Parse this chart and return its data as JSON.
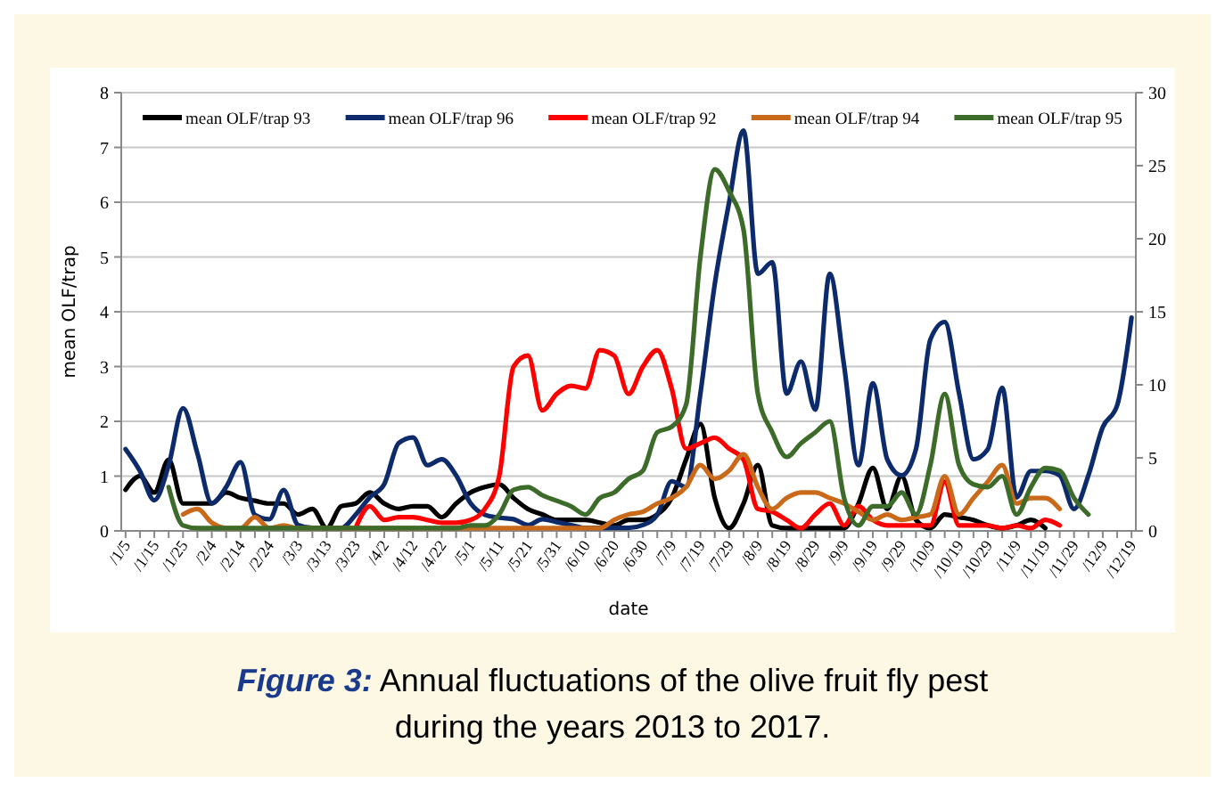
{
  "chart_data": {
    "type": "line",
    "title": "Figure 3: Annual fluctuations of the olive fruit fly pest during the years 2013 to 2017.",
    "xlabel": "date",
    "ylabel": "mean OLF/trap",
    "categories": [
      "/1/5",
      null,
      "/1/15",
      null,
      "/1/25",
      null,
      "/2/4",
      null,
      "/2/14",
      null,
      "/2/24",
      null,
      "/3/3",
      null,
      "/3/13",
      null,
      "/3/23",
      null,
      "/4/2",
      null,
      "/4/12",
      null,
      "/4/22",
      null,
      "/5/1",
      null,
      "/5/11",
      null,
      "/5/21",
      null,
      "/5/31",
      null,
      "/6/10",
      null,
      "/6/20",
      null,
      "/6/30",
      null,
      "/7/9",
      null,
      "/7/19",
      null,
      "/7/29",
      null,
      "/8/9",
      null,
      "/8/19",
      null,
      "/8/29",
      null,
      "/9/9",
      null,
      "/9/19",
      null,
      "/9/29",
      null,
      "/10/9",
      null,
      "/10/19",
      null,
      "/10/29",
      null,
      "/11/9",
      null,
      "/11/19",
      null,
      "/11/29",
      null,
      "/12/9",
      null,
      "/12/19"
    ],
    "series": [
      {
        "name": "mean OLF/trap 93",
        "color": "#000000",
        "values": [
          0.75,
          1.0,
          0.7,
          1.3,
          0.5,
          0.5,
          0.5,
          0.7,
          0.6,
          0.55,
          0.5,
          0.5,
          0.3,
          0.4,
          0.05,
          0.45,
          0.5,
          0.7,
          0.5,
          0.4,
          0.45,
          0.45,
          0.25,
          0.5,
          0.7,
          0.8,
          0.85,
          0.6,
          0.4,
          0.3,
          0.2,
          0.2,
          0.2,
          0.15,
          0.1,
          0.2,
          0.2,
          0.3,
          0.6,
          1.3,
          1.95,
          0.6,
          0.05,
          0.5,
          1.2,
          0.1,
          0.05,
          0.05,
          0.05,
          0.05,
          0.05,
          0.5,
          1.15,
          0.4,
          1.0,
          0.2,
          0.05,
          0.3,
          0.25,
          0.2,
          0.1,
          0.05,
          0.1,
          0.2,
          0.05,
          null,
          null,
          null,
          null,
          null,
          null
        ]
      },
      {
        "name": "mean OLF/trap 96",
        "color": "#0d2b6b",
        "axis": "y2",
        "values": [
          5.6,
          4.1,
          2.1,
          4.5,
          8.4,
          5.3,
          1.9,
          3,
          4.7,
          1.1,
          0.8,
          2.8,
          0.4,
          0.2,
          0.2,
          0.2,
          1.1,
          2.3,
          3.2,
          6,
          6.4,
          4.5,
          4.9,
          3.8,
          1.9,
          1.1,
          0.9,
          0.8,
          0.4,
          0.8,
          0.6,
          0.4,
          0.2,
          0.2,
          0.2,
          0.2,
          0.4,
          1.1,
          3.4,
          3,
          9.4,
          16.9,
          22.5,
          27.4,
          17.6,
          18.4,
          9.4,
          11.6,
          8.3,
          17.6,
          11.3,
          4.5,
          10.1,
          4.9,
          3.8,
          5.6,
          13.1,
          14.3,
          9.4,
          4.9,
          5.6,
          9.8,
          2.3,
          4.1,
          4.1,
          3.8,
          1.5,
          3.8,
          7.1,
          8.6,
          14.6
        ]
      },
      {
        "name": "mean OLF/trap 92",
        "color": "#ff0000",
        "values": [
          null,
          null,
          null,
          null,
          null,
          null,
          null,
          null,
          null,
          null,
          null,
          null,
          null,
          null,
          null,
          null,
          0.05,
          0.45,
          0.2,
          0.25,
          0.25,
          0.2,
          0.15,
          0.15,
          0.2,
          0.4,
          1.0,
          3.0,
          3.2,
          2.2,
          2.5,
          2.65,
          2.6,
          3.3,
          3.2,
          2.5,
          3.0,
          3.3,
          2.6,
          1.5,
          1.6,
          1.7,
          1.5,
          1.3,
          0.4,
          0.35,
          0.2,
          0.05,
          0.3,
          0.5,
          0.1,
          0.45,
          0.2,
          0.1,
          0.1,
          0.1,
          0.1,
          0.9,
          0.1,
          0.1,
          0.1,
          0.05,
          0.1,
          0.05,
          0.2,
          0.1,
          null,
          null,
          null,
          null,
          null
        ]
      },
      {
        "name": "mean OLF/trap 94",
        "color": "#c96a1b",
        "values": [
          null,
          null,
          null,
          null,
          0.3,
          0.4,
          0.15,
          0.05,
          0.05,
          0.25,
          0.05,
          0.1,
          0.05,
          0.05,
          0.05,
          0.05,
          0.05,
          0.05,
          0.05,
          0.05,
          0.05,
          0.05,
          0.05,
          0.05,
          0.05,
          0.05,
          0.05,
          0.05,
          0.05,
          0.05,
          0.05,
          0.05,
          0.05,
          0.05,
          0.2,
          0.3,
          0.35,
          0.5,
          0.6,
          0.8,
          1.2,
          0.95,
          1.1,
          1.4,
          0.8,
          0.4,
          0.6,
          0.7,
          0.7,
          0.6,
          0.5,
          0.35,
          0.2,
          0.3,
          0.2,
          0.25,
          0.3,
          1.0,
          0.3,
          0.6,
          0.9,
          1.2,
          0.5,
          0.6,
          0.6,
          0.4,
          null,
          null,
          null,
          null,
          null
        ]
      },
      {
        "name": "mean OLF/trap 95",
        "color": "#3d6b2a",
        "values": [
          null,
          null,
          null,
          0.8,
          0.1,
          0.05,
          0.05,
          0.05,
          0.05,
          0.05,
          0.05,
          0.05,
          0.05,
          0.05,
          0.05,
          0.05,
          0.05,
          0.05,
          0.05,
          0.05,
          0.05,
          0.05,
          0.05,
          0.05,
          0.1,
          0.1,
          0.3,
          0.75,
          0.8,
          0.65,
          0.55,
          0.45,
          0.3,
          0.6,
          0.7,
          0.95,
          1.1,
          1.8,
          1.9,
          2.3,
          5.0,
          6.6,
          6.2,
          5.5,
          2.5,
          1.8,
          1.35,
          1.6,
          1.8,
          2.0,
          0.6,
          0.1,
          0.45,
          0.45,
          0.7,
          0.3,
          1.2,
          2.5,
          1.2,
          0.85,
          0.8,
          1.0,
          0.3,
          0.8,
          1.15,
          1.1,
          0.6,
          0.3,
          null,
          null,
          null
        ]
      }
    ],
    "ylim": [
      0,
      8
    ],
    "yticks": [
      0,
      1,
      2,
      3,
      4,
      5,
      6,
      7,
      8
    ],
    "y2lim": [
      0,
      30
    ],
    "y2ticks": [
      0,
      5,
      10,
      15,
      20,
      25,
      30
    ],
    "grid": "y",
    "legend": "top",
    "marker": "none",
    "line_style": "solid"
  }
}
